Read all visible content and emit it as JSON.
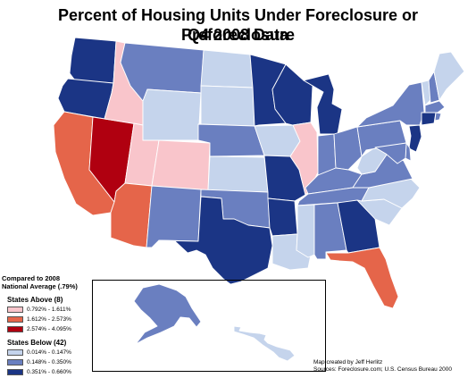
{
  "title": "Percent of Housing Units Under Foreclosure or Preforeclosure",
  "subtitle": "Q4 2008 Data",
  "legend": {
    "heading_line1": "Compared to 2008",
    "heading_line2": "National Average (.79%)",
    "above_label": "States Above (8)",
    "below_label": "States Below (42)",
    "classes": [
      {
        "id": "above_1",
        "range": "0.792% - 1.611%",
        "color": "#f9c5cb"
      },
      {
        "id": "above_2",
        "range": "1.612% - 2.573%",
        "color": "#e5654a"
      },
      {
        "id": "above_3",
        "range": "2.574% - 4.095%",
        "color": "#b00010"
      },
      {
        "id": "below_1",
        "range": "0.014% - 0.147%",
        "color": "#c5d4ec"
      },
      {
        "id": "below_2",
        "range": "0.148% - 0.350%",
        "color": "#6a7fc0"
      },
      {
        "id": "below_3",
        "range": "0.351% - 0.660%",
        "color": "#1b3585"
      }
    ]
  },
  "credits": {
    "line1": "Map created by Jeff Herlitz",
    "line2": "Sources: Foreclosure.com; U.S. Census Bureau 2000"
  },
  "states": {
    "WA": "below_3",
    "OR": "below_3",
    "CA": "above_2",
    "NV": "above_3",
    "ID": "above_1",
    "UT": "above_1",
    "AZ": "above_2",
    "MT": "below_2",
    "WY": "below_1",
    "CO": "above_1",
    "NM": "below_2",
    "ND": "below_1",
    "SD": "below_1",
    "NE": "below_2",
    "KS": "below_1",
    "OK": "below_2",
    "TX": "below_3",
    "MN": "below_3",
    "IA": "below_1",
    "MO": "below_3",
    "AR": "below_3",
    "LA": "below_1",
    "WI": "below_3",
    "IL": "above_1",
    "MI": "below_3",
    "IN": "below_2",
    "OH": "below_2",
    "KY": "below_2",
    "TN": "below_2",
    "MS": "below_1",
    "AL": "below_2",
    "GA": "below_3",
    "FL": "above_2",
    "SC": "below_1",
    "NC": "below_1",
    "VA": "below_2",
    "WV": "below_1",
    "PA": "below_2",
    "NY": "below_2",
    "VT": "below_1",
    "NH": "below_2",
    "ME": "below_1",
    "MA": "below_2",
    "CT": "below_3",
    "RI": "below_2",
    "NJ": "below_3",
    "DE": "below_2",
    "MD": "below_2",
    "AK": "below_2",
    "HI": "below_1"
  }
}
